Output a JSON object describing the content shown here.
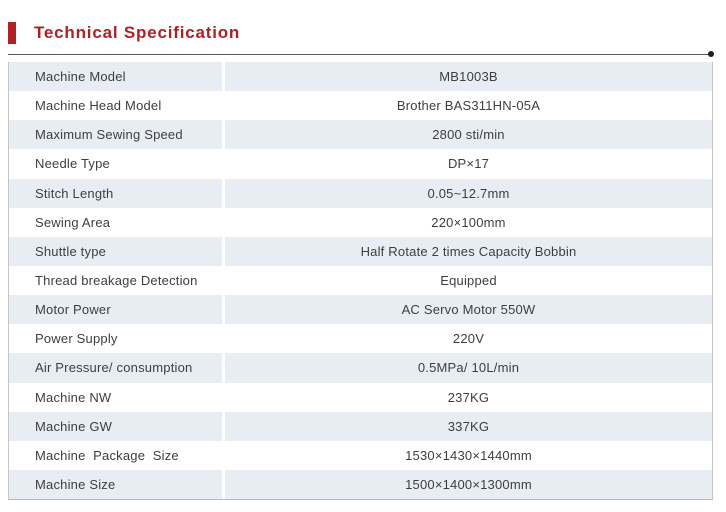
{
  "header": {
    "title": "Technical Specification"
  },
  "colors": {
    "accent_red": "#b01f24",
    "row_stripe": "#e7edf3",
    "text": "#3e3e3e"
  },
  "table": {
    "rows": [
      {
        "label": "Machine Model",
        "value": "MB1003B"
      },
      {
        "label": "Machine Head Model",
        "value": "Brother BAS311HN-05A"
      },
      {
        "label": "Maximum Sewing Speed",
        "value": "2800 sti/min"
      },
      {
        "label": "Needle Type",
        "value": "DP×17"
      },
      {
        "label": "Stitch Length",
        "value": "0.05~12.7mm"
      },
      {
        "label": "Sewing Area",
        "value": "220×100mm"
      },
      {
        "label": "Shuttle type",
        "value": "Half Rotate 2 times Capacity Bobbin"
      },
      {
        "label": "Thread breakage Detection",
        "value": "Equipped"
      },
      {
        "label": "Motor Power",
        "value": "AC Servo Motor 550W"
      },
      {
        "label": "Power Supply",
        "value": "220V"
      },
      {
        "label": "Air Pressure/ consumption",
        "value": "0.5MPa/ 10L/min"
      },
      {
        "label": "Machine NW",
        "value": "237KG"
      },
      {
        "label": "Machine GW",
        "value": "337KG"
      },
      {
        "label": "Machine  Package  Size",
        "value": "1530×1430×1440mm"
      },
      {
        "label": "Machine Size",
        "value": "1500×1400×1300mm"
      }
    ]
  }
}
